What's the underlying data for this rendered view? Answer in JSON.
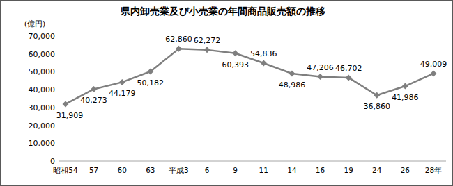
{
  "chart_data": {
    "type": "line",
    "title": "県内卸売業及び小売業の年間商品販売額の推移",
    "y_label": "(億円)",
    "categories": [
      "昭和54",
      "57",
      "60",
      "63",
      "平成3",
      "6",
      "9",
      "11",
      "14",
      "16",
      "19",
      "24",
      "26",
      "28年"
    ],
    "values": [
      31909,
      40273,
      44179,
      50182,
      62860,
      62272,
      60393,
      54836,
      48986,
      47206,
      46702,
      36860,
      41986,
      49009
    ],
    "value_labels": [
      "31,909",
      "40,273",
      "44,179",
      "50,182",
      "62,860",
      "62,272",
      "60,393",
      "54,836",
      "48,986",
      "47,206",
      "46,702",
      "36,860",
      "41,986",
      "49,009"
    ],
    "color": "#7f7f7f",
    "marker": "diamond",
    "data_labels": true,
    "grid": false,
    "ylim": [
      0,
      70000
    ],
    "yticks": [
      0,
      {
        "value": 10000,
        "label": "10,000"
      },
      {
        "value": 20000,
        "label": "20,000"
      },
      {
        "value": 30000,
        "label": "30,000"
      },
      {
        "value": 40000,
        "label": "40,000"
      },
      {
        "value": 50000,
        "label": "50,000"
      },
      {
        "value": 60000,
        "label": "60,000"
      },
      {
        "value": 70000,
        "label": "70,000"
      }
    ]
  }
}
